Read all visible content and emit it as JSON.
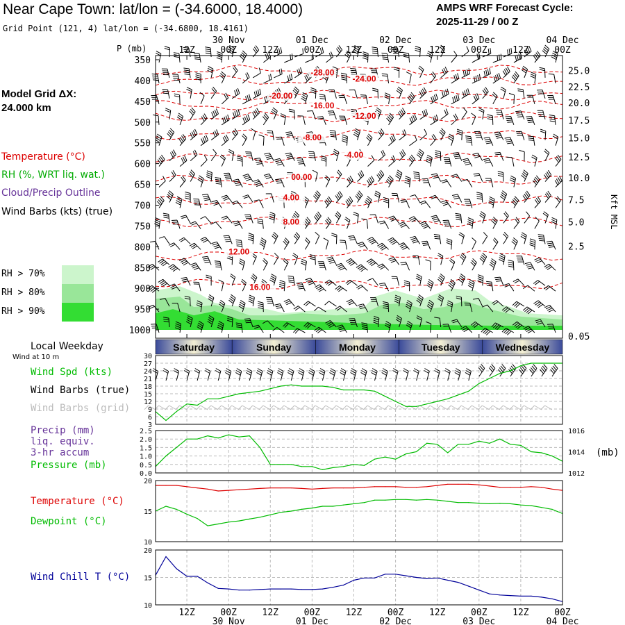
{
  "header": {
    "title": "Near Cape Town:  lat/lon = (-34.6000, 18.4000)",
    "grid_point": "Grid Point (121, 4) lat/lon = (-34.6800, 18.4161)",
    "cycle_label": "AMPS WRF Forecast Cycle:",
    "cycle_value": "2025-11-29 / 00  Z",
    "model_grid_label": "Model Grid ΔX:",
    "model_grid_value": " 24.000 km"
  },
  "time_axis": {
    "hour_labels": [
      "12Z",
      "00Z",
      "12Z",
      "00Z",
      "12Z",
      "00Z",
      "12Z",
      "00Z",
      "12Z",
      "00Z"
    ],
    "date_labels": [
      "30 Nov",
      "01 Dec",
      "02 Dec",
      "03 Dec",
      "04 Dec"
    ]
  },
  "weekdays": {
    "heading": "Local Weekday",
    "wind_note": "Wind at 10 m",
    "days": [
      "Saturday",
      "Sunday",
      "Monday",
      "Tuesday",
      "Wednesday"
    ]
  },
  "legend": {
    "temperature": "Temperature (°C)",
    "rh": "RH (%, WRT liq. wat.)",
    "cloud": "Cloud/Precip Outline",
    "wind_barbs": "Wind Barbs (kts) (true)",
    "rh70": "RH > 70%",
    "rh80": "RH > 80%",
    "rh90": "RH > 90%",
    "wind_spd": "Wind Spd (kts)",
    "wind_barbs_true": "Wind Barbs (true)",
    "wind_barbs_grid": "Wind Barbs (grid)",
    "precip_1": "Precip (mm)",
    "precip_2": "liq. equiv.",
    "precip_3": "3-hr accum",
    "pressure": "Pressure (mb)",
    "temperature2": "Temperature (°C)",
    "dewpoint": "Dewpoint (°C)",
    "wind_chill": "Wind Chill T (°C)",
    "pressure_unit": "(mb)",
    "p_axis_title": "P (mb)",
    "kft_title": "Kft MSL"
  },
  "colors": {
    "temperature": "#dd0000",
    "rh": "#00aa00",
    "cloud": "#663399",
    "wind_speed": "#00bb00",
    "dewpoint": "#00bb00",
    "wind_chill": "#000099",
    "rh70": "#ccf5cc",
    "rh80": "#99e699",
    "rh90": "#33dd33",
    "grid_barbs": "#bbbbbb"
  },
  "chart_data": [
    {
      "type": "contour",
      "title": "Temperature, RH and wind profile",
      "x_unit": "hours from 2025-11-29 00Z",
      "xlim": [
        3,
        120
      ],
      "ylabel": "P (mb)",
      "ylim": [
        1000,
        350
      ],
      "pressure_levels": [
        350,
        400,
        450,
        500,
        550,
        600,
        650,
        700,
        750,
        800,
        850,
        900,
        950,
        1000
      ],
      "height_kft_ticks": [
        "25.0",
        "22.5",
        "20.0",
        "17.5",
        "15.0",
        "12.5",
        "10.0",
        "7.5",
        "5.0",
        "2.5",
        "0.05"
      ],
      "height_kft_pressures": [
        378,
        417,
        455,
        497,
        540,
        586,
        636,
        688,
        742,
        800,
        860,
        922,
        1000
      ],
      "isotherms": [
        {
          "label": "-28.00",
          "pressure": 375,
          "label_time": 51
        },
        {
          "label": "-24.00",
          "pressure": 400,
          "label_time": 63
        },
        {
          "label": "-20.00",
          "pressure": 435,
          "label_time": 39
        },
        {
          "label": "-16.00",
          "pressure": 460,
          "label_time": 51
        },
        {
          "label": "-12.00",
          "pressure": 487,
          "label_time": 63
        },
        {
          "label": "-8.00",
          "pressure": 530,
          "label_time": 48
        },
        {
          "label": "-4.00",
          "pressure": 585,
          "label_time": 60
        },
        {
          "label": "00.00",
          "pressure": 640,
          "label_time": 45
        },
        {
          "label": "4.00",
          "pressure": 690,
          "label_time": 42
        },
        {
          "label": "8.00",
          "pressure": 740,
          "label_time": 42
        },
        {
          "label": "12.00",
          "pressure": 820,
          "label_time": 27
        },
        {
          "label": "16.00",
          "pressure": 890,
          "label_time": 33
        }
      ],
      "rh_regions": [
        {
          "level": "RH > 70%",
          "from_time": 3,
          "to_time": 120,
          "top_pressure": 850
        },
        {
          "level": "RH > 80%",
          "from_time": 3,
          "to_time": 120,
          "top_pressure": 900
        },
        {
          "level": "RH > 90%",
          "from_time": 3,
          "to_time": 120,
          "top_pressure": 960
        }
      ]
    },
    {
      "type": "line",
      "title": "Wind Spd (kts)",
      "ylim": [
        3,
        30
      ],
      "y_ticks": [
        "30",
        "27",
        "24",
        "21",
        "18",
        "15",
        "12",
        "9",
        "6",
        "3"
      ],
      "x": [
        3,
        6,
        9,
        12,
        15,
        18,
        21,
        24,
        27,
        30,
        33,
        36,
        39,
        42,
        45,
        48,
        51,
        54,
        57,
        60,
        63,
        66,
        69,
        72,
        75,
        78,
        81,
        84,
        87,
        90,
        93,
        96,
        99,
        102,
        105,
        108,
        111,
        114,
        117,
        120
      ],
      "values": [
        8,
        4.5,
        8,
        11,
        10.5,
        13,
        13,
        14,
        15,
        15.5,
        16,
        17,
        18,
        18.5,
        18,
        18,
        18,
        17.5,
        16.5,
        16.5,
        16.5,
        16,
        14,
        12,
        10,
        10,
        11,
        12,
        13,
        14.5,
        16,
        19,
        21,
        23,
        24,
        26,
        27,
        27,
        27,
        27
      ]
    },
    {
      "type": "line",
      "title": "Pressure (mb)",
      "y_unit": "mb",
      "ylim": [
        1012,
        1016
      ],
      "left_ticks": [
        "2.5",
        "2.0",
        "1.5",
        "1.0",
        "0.5",
        "0.0"
      ],
      "right_ticks": [
        "1016",
        "1014",
        "1012"
      ],
      "x": [
        3,
        6,
        9,
        12,
        15,
        18,
        21,
        24,
        27,
        30,
        33,
        36,
        39,
        42,
        45,
        48,
        51,
        54,
        57,
        60,
        63,
        66,
        69,
        72,
        75,
        78,
        81,
        84,
        87,
        90,
        93,
        96,
        99,
        102,
        105,
        108,
        111,
        114,
        117,
        120
      ],
      "values": [
        1012.6,
        1013.6,
        1014.4,
        1015.2,
        1015.2,
        1015.5,
        1015.3,
        1015.6,
        1015.4,
        1015.5,
        1014.4,
        1012.8,
        1012.8,
        1012.8,
        1012.6,
        1012.6,
        1012.3,
        1012.5,
        1012.6,
        1012.8,
        1012.7,
        1013.3,
        1013.5,
        1013.3,
        1013.8,
        1014.0,
        1014.8,
        1014.7,
        1013.9,
        1014.7,
        1014.7,
        1015.0,
        1014.8,
        1015.2,
        1014.7,
        1014.6,
        1014.0,
        1013.9,
        1013.6,
        1013.1
      ]
    },
    {
      "type": "line",
      "title": "Temperature and Dewpoint (°C)",
      "ylim": [
        10,
        20
      ],
      "y_ticks": [
        "20",
        "15",
        "10"
      ],
      "x": [
        3,
        6,
        9,
        12,
        15,
        18,
        21,
        24,
        27,
        30,
        33,
        36,
        39,
        42,
        45,
        48,
        51,
        54,
        57,
        60,
        63,
        66,
        69,
        72,
        75,
        78,
        81,
        84,
        87,
        90,
        93,
        96,
        99,
        102,
        105,
        108,
        111,
        114,
        117,
        120
      ],
      "series": [
        {
          "name": "Temperature",
          "values": [
            19.2,
            19.2,
            19.2,
            19.0,
            18.8,
            18.6,
            18.3,
            18.4,
            18.5,
            18.6,
            18.7,
            18.8,
            18.8,
            18.8,
            18.7,
            18.6,
            18.7,
            18.8,
            18.8,
            18.8,
            18.9,
            19.0,
            19.0,
            19.0,
            18.9,
            18.9,
            19.0,
            19.2,
            19.4,
            19.4,
            19.4,
            19.3,
            19.1,
            18.9,
            18.9,
            18.9,
            19.0,
            18.9,
            18.6,
            18.4
          ]
        },
        {
          "name": "Dewpoint",
          "values": [
            15.0,
            15.8,
            15.3,
            14.5,
            13.8,
            12.6,
            12.9,
            13.2,
            13.4,
            13.7,
            14.0,
            14.4,
            14.8,
            15.0,
            15.3,
            15.5,
            15.8,
            15.8,
            16.0,
            16.2,
            16.4,
            16.8,
            16.8,
            16.9,
            16.9,
            16.8,
            16.9,
            16.8,
            16.6,
            16.4,
            16.4,
            16.3,
            16.2,
            16.3,
            16.2,
            16.0,
            15.9,
            15.6,
            15.3,
            14.6
          ]
        }
      ]
    },
    {
      "type": "line",
      "title": "Wind Chill T (°C)",
      "ylim": [
        10,
        20
      ],
      "y_ticks": [
        "20",
        "15",
        "10"
      ],
      "x": [
        3,
        6,
        9,
        12,
        15,
        18,
        21,
        24,
        27,
        30,
        33,
        36,
        39,
        42,
        45,
        48,
        51,
        54,
        57,
        60,
        63,
        66,
        69,
        72,
        75,
        78,
        81,
        84,
        87,
        90,
        93,
        96,
        99,
        102,
        105,
        108,
        111,
        114,
        117,
        120
      ],
      "values": [
        15.4,
        18.8,
        16.6,
        15.2,
        15.2,
        14.0,
        13.0,
        12.9,
        12.7,
        12.7,
        12.8,
        12.9,
        12.9,
        12.9,
        12.8,
        12.8,
        12.9,
        13.2,
        13.6,
        14.5,
        14.9,
        14.9,
        15.6,
        15.6,
        15.3,
        15.0,
        14.8,
        14.9,
        14.5,
        14.1,
        13.4,
        12.7,
        12.0,
        11.8,
        11.7,
        11.6,
        11.6,
        11.4,
        11.1,
        10.6
      ]
    }
  ]
}
